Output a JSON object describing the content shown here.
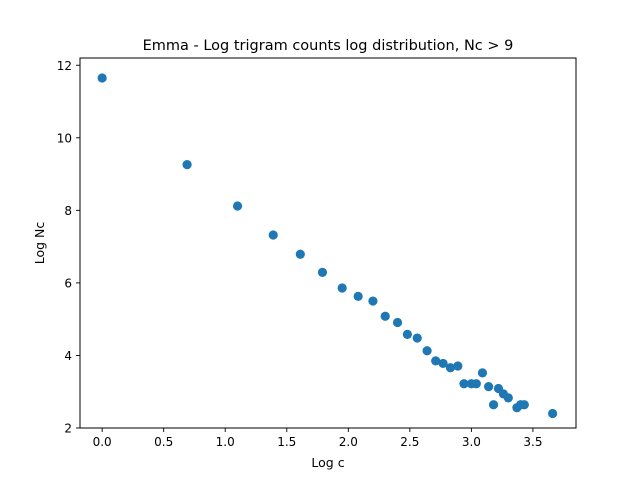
{
  "chart_data": {
    "type": "scatter",
    "title": "Emma - Log trigram counts log distribution, Nc > 9",
    "xlabel": "Log c",
    "ylabel": "Log Nc",
    "xlim": [
      -0.18,
      3.85
    ],
    "ylim": [
      2.0,
      12.2
    ],
    "xticks": [
      "0.0",
      "0.5",
      "1.0",
      "1.5",
      "2.0",
      "2.5",
      "3.0",
      "3.5"
    ],
    "yticks": [
      "2",
      "4",
      "6",
      "8",
      "10",
      "12"
    ],
    "grid": false,
    "legend": "none",
    "marker_color": "#1f77b4",
    "series": [
      {
        "points": [
          [
            0.0,
            11.65
          ],
          [
            0.69,
            9.26
          ],
          [
            1.1,
            8.12
          ],
          [
            1.39,
            7.32
          ],
          [
            1.61,
            6.79
          ],
          [
            1.79,
            6.29
          ],
          [
            1.95,
            5.86
          ],
          [
            2.08,
            5.63
          ],
          [
            2.2,
            5.5
          ],
          [
            2.3,
            5.08
          ],
          [
            2.4,
            4.91
          ],
          [
            2.48,
            4.58
          ],
          [
            2.56,
            4.48
          ],
          [
            2.64,
            4.13
          ],
          [
            2.71,
            3.85
          ],
          [
            2.77,
            3.78
          ],
          [
            2.83,
            3.66
          ],
          [
            2.89,
            3.71
          ],
          [
            2.94,
            3.22
          ],
          [
            3.0,
            3.22
          ],
          [
            3.04,
            3.22
          ],
          [
            3.09,
            3.52
          ],
          [
            3.14,
            3.14
          ],
          [
            3.18,
            2.64
          ],
          [
            3.22,
            3.09
          ],
          [
            3.26,
            2.94
          ],
          [
            3.3,
            2.83
          ],
          [
            3.37,
            2.56
          ],
          [
            3.4,
            2.64
          ],
          [
            3.43,
            2.64
          ],
          [
            3.66,
            2.4
          ]
        ]
      }
    ]
  }
}
